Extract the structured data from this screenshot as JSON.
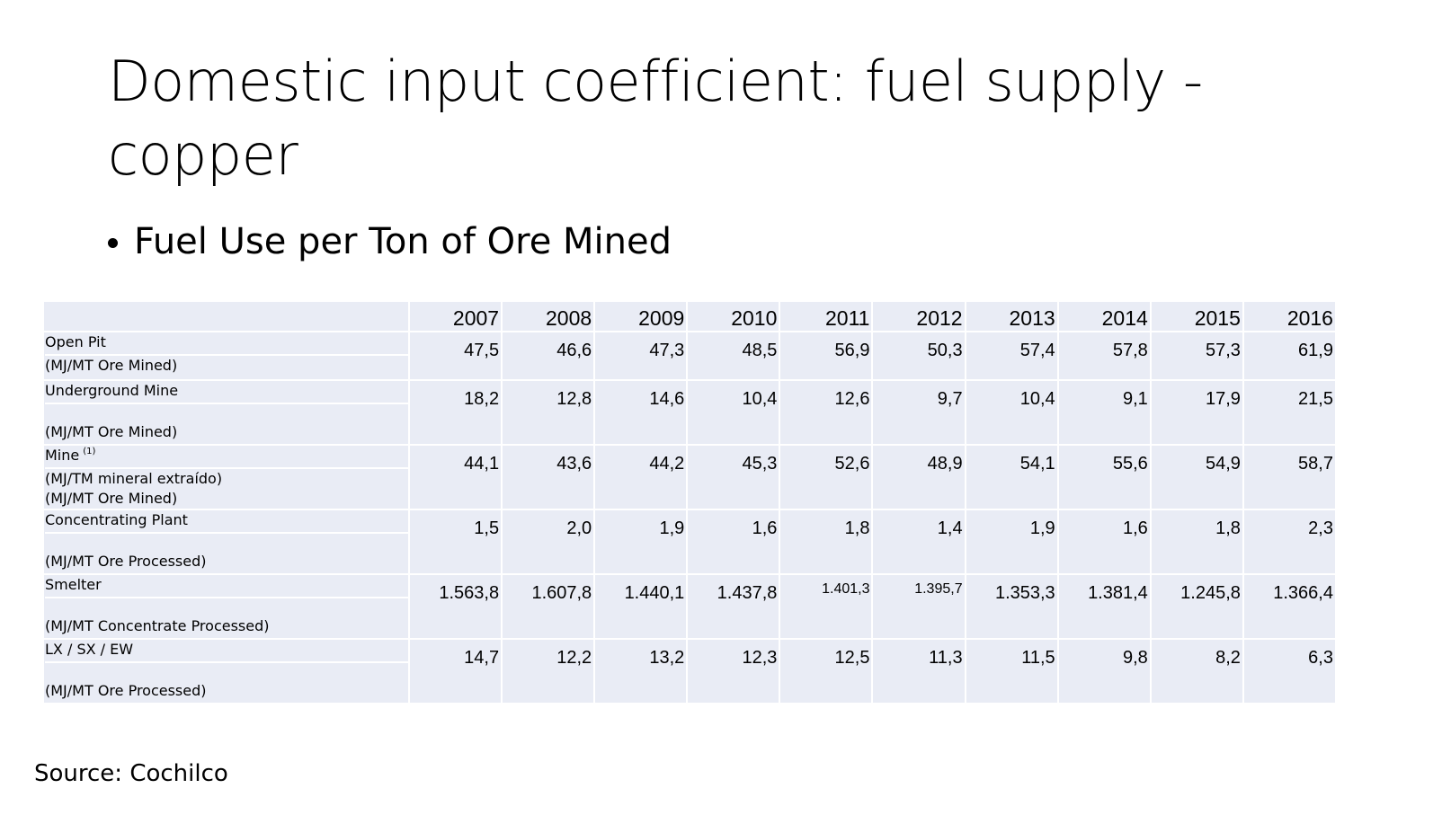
{
  "slide": {
    "title": "Domestic input coefficient: fuel supply - copper",
    "bullet": "Fuel Use per Ton of Ore Mined",
    "source": "Source: Cochilco"
  },
  "table": {
    "years": [
      "2007",
      "2008",
      "2009",
      "2010",
      "2011",
      "2012",
      "2013",
      "2014",
      "2015",
      "2016"
    ],
    "rows": [
      {
        "name": "Open Pit",
        "unit": "(MJ/MT Ore Mined)",
        "values": [
          "47,5",
          "46,6",
          "47,3",
          "48,5",
          "56,9",
          "50,3",
          "57,4",
          "57,8",
          "57,3",
          "61,9"
        ]
      },
      {
        "name": "Underground Mine",
        "unit": "(MJ/MT Ore Mined)",
        "values": [
          "18,2",
          "12,8",
          "14,6",
          "10,4",
          "12,6",
          "9,7",
          "10,4",
          "9,1",
          "17,9",
          "21,5"
        ]
      },
      {
        "name": "Mine",
        "note": "(1)",
        "unit": "(MJ/TM mineral extraído)",
        "unit2": "(MJ/MT Ore Mined)",
        "values": [
          "44,1",
          "43,6",
          "44,2",
          "45,3",
          "52,6",
          "48,9",
          "54,1",
          "55,6",
          "54,9",
          "58,7"
        ]
      },
      {
        "name": "Concentrating Plant",
        "unit": "(MJ/MT Ore Processed)",
        "values": [
          "1,5",
          "2,0",
          "1,9",
          "1,6",
          "1,8",
          "1,4",
          "1,9",
          "1,6",
          "1,8",
          "2,3"
        ]
      },
      {
        "name": "Smelter",
        "unit": "(MJ/MT Concentrate Processed)",
        "values": [
          "1.563,8",
          "1.607,8",
          "1.440,1",
          "1.437,8",
          "1.401,3",
          "1.395,7",
          "1.353,3",
          "1.381,4",
          "1.245,8",
          "1.366,4"
        ]
      },
      {
        "name": "LX / SX / EW",
        "unit": "(MJ/MT Ore Processed)",
        "values": [
          "14,7",
          "12,2",
          "13,2",
          "12,3",
          "12,5",
          "11,3",
          "11,5",
          "9,8",
          "8,2",
          "6,3"
        ]
      }
    ]
  }
}
